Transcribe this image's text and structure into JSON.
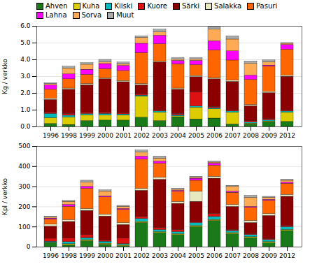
{
  "chart_data": [
    {
      "type": "bar",
      "stacked": true,
      "ylabel": "Kg / verkko",
      "categories": [
        "1996",
        "1998",
        "1999",
        "2000",
        "2001",
        "2002",
        "2003",
        "2004",
        "2005",
        "2006",
        "2007",
        "2008",
        "2009",
        "2012"
      ],
      "ylim": [
        0,
        6
      ],
      "yticks": [
        0,
        1,
        2,
        3,
        4,
        5,
        6
      ],
      "grid": true,
      "legend": "upper left",
      "series": [
        {
          "name": "Ahven",
          "color": "#1a7a1a",
          "values": [
            0.18,
            0.12,
            0.35,
            0.38,
            0.38,
            0.55,
            0.35,
            0.58,
            0.45,
            0.5,
            0.15,
            0.15,
            0.28,
            0.3
          ]
        },
        {
          "name": "Kuha",
          "color": "#ddcc00",
          "values": [
            0.35,
            0.45,
            0.35,
            0.3,
            0.3,
            1.25,
            0.5,
            0.05,
            0.7,
            0.55,
            0.7,
            0.05,
            0.05,
            0.55
          ]
        },
        {
          "name": "Kiiski",
          "color": "#00bbbb",
          "values": [
            0.25,
            0.1,
            0.07,
            0.1,
            0.07,
            0.07,
            0.07,
            0.07,
            0.07,
            0.07,
            0.07,
            0.07,
            0.07,
            0.07
          ]
        },
        {
          "name": "Kuore",
          "color": "#dd1111",
          "values": [
            0.08,
            0.1,
            0.07,
            0.07,
            0.07,
            0.07,
            0.07,
            0.07,
            0.85,
            0.07,
            0.07,
            0.07,
            0.07,
            0.07
          ]
        },
        {
          "name": "Särki",
          "color": "#8b0000",
          "values": [
            0.75,
            1.45,
            1.65,
            2.0,
            1.85,
            0.55,
            2.85,
            1.45,
            0.9,
            1.65,
            1.7,
            0.9,
            1.55,
            2.0
          ]
        },
        {
          "name": "Salakka",
          "color": "#e8e8c0",
          "values": [
            0.07,
            0.07,
            0.07,
            0.05,
            0.07,
            0.07,
            0.05,
            0.07,
            0.07,
            0.07,
            0.07,
            0.07,
            0.07,
            0.07
          ]
        },
        {
          "name": "Pasuri",
          "color": "#ff6600",
          "values": [
            0.55,
            0.55,
            0.55,
            0.55,
            0.6,
            1.85,
            1.05,
            1.45,
            0.65,
            1.65,
            1.2,
            1.5,
            1.5,
            1.55
          ]
        },
        {
          "name": "Lahna",
          "color": "#ff00ff",
          "values": [
            0.25,
            0.3,
            0.3,
            0.3,
            0.3,
            0.55,
            0.5,
            0.2,
            0.25,
            0.55,
            0.55,
            0.25,
            0.07,
            0.28
          ]
        },
        {
          "name": "Sorva",
          "color": "#ffaa55",
          "values": [
            0.07,
            0.35,
            0.3,
            0.1,
            0.1,
            0.35,
            0.2,
            0.07,
            0.07,
            0.7,
            0.7,
            0.7,
            0.2,
            0.07
          ]
        },
        {
          "name": "Muut",
          "color": "#aaaaaa",
          "values": [
            0.05,
            0.1,
            0.09,
            0.15,
            0.1,
            0.09,
            0.16,
            0.09,
            0.09,
            0.14,
            0.19,
            0.14,
            0.11,
            0.04
          ]
        }
      ]
    },
    {
      "type": "bar",
      "stacked": true,
      "ylabel": "Kpl / verkko",
      "categories": [
        "1996",
        "1998",
        "1999",
        "2000",
        "2001",
        "2002",
        "2003",
        "2004",
        "2005",
        "2006",
        "2007",
        "2008",
        "2009",
        "2012"
      ],
      "ylim": [
        0,
        500
      ],
      "yticks": [
        0,
        100,
        200,
        300,
        400,
        500
      ],
      "grid": true,
      "series": [
        {
          "name": "Ahven",
          "color": "#1a7a1a",
          "values": [
            20,
            10,
            30,
            12,
            5,
            120,
            70,
            60,
            100,
            130,
            65,
            45,
            20,
            80
          ]
        },
        {
          "name": "Kuha",
          "color": "#ddcc00",
          "values": [
            2,
            5,
            5,
            5,
            5,
            5,
            5,
            5,
            5,
            5,
            5,
            5,
            5,
            5
          ]
        },
        {
          "name": "Kiiski",
          "color": "#00bbbb",
          "values": [
            5,
            10,
            10,
            10,
            5,
            15,
            10,
            10,
            15,
            15,
            10,
            10,
            10,
            15
          ]
        },
        {
          "name": "Kuore",
          "color": "#dd1111",
          "values": [
            15,
            20,
            15,
            5,
            30,
            10,
            10,
            10,
            5,
            15,
            5,
            5,
            5,
            5
          ]
        },
        {
          "name": "Särki",
          "color": "#8b0000",
          "values": [
            60,
            80,
            120,
            120,
            65,
            130,
            240,
            130,
            100,
            175,
            115,
            55,
            115,
            145
          ]
        },
        {
          "name": "Salakka",
          "color": "#e8e8c0",
          "values": [
            10,
            10,
            10,
            10,
            10,
            10,
            10,
            10,
            50,
            10,
            10,
            10,
            10,
            10
          ]
        },
        {
          "name": "Pasuri",
          "color": "#ff6600",
          "values": [
            25,
            65,
            100,
            85,
            65,
            145,
            70,
            50,
            55,
            55,
            60,
            65,
            65,
            55
          ]
        },
        {
          "name": "Lahna",
          "color": "#ff00ff",
          "values": [
            5,
            10,
            10,
            5,
            5,
            15,
            10,
            5,
            10,
            10,
            5,
            5,
            5,
            5
          ]
        },
        {
          "name": "Sorva",
          "color": "#ffaa55",
          "values": [
            5,
            15,
            20,
            25,
            10,
            20,
            15,
            5,
            5,
            5,
            25,
            45,
            10,
            10
          ]
        },
        {
          "name": "Muut",
          "color": "#aaaaaa",
          "values": [
            5,
            5,
            10,
            5,
            5,
            10,
            10,
            5,
            5,
            5,
            5,
            10,
            5,
            5
          ]
        }
      ]
    }
  ]
}
